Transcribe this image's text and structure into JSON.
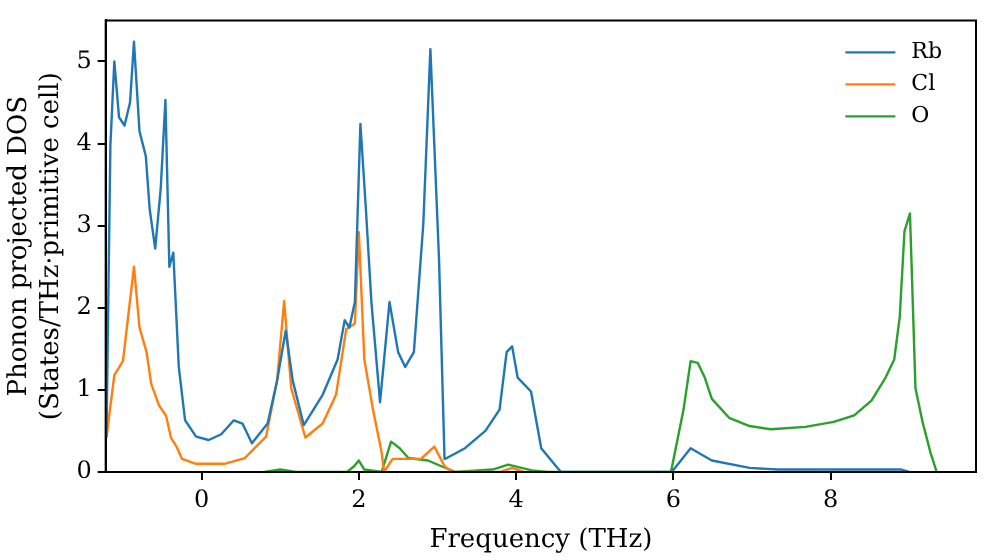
{
  "chart_data": {
    "type": "line",
    "xlabel": "Frequency (THz)",
    "ylabel": "Phonon projected DOS\n(States/THz·primitive cell)",
    "xlim": [
      -1.22,
      9.85
    ],
    "ylim": [
      0,
      5.5
    ],
    "xticks": [
      0,
      2,
      4,
      6,
      8
    ],
    "yticks": [
      0,
      1,
      2,
      3,
      4,
      5
    ],
    "grid": false,
    "legend": "top right",
    "marker": "none",
    "line_style": "solid",
    "series": [
      {
        "name": "Rb",
        "color": "#1f77b4",
        "x": [
          -1.21,
          -1.16,
          -1.11,
          -1.05,
          -0.98,
          -0.91,
          -0.86,
          -0.79,
          -0.71,
          -0.66,
          -0.59,
          -0.52,
          -0.46,
          -0.41,
          -0.36,
          -0.29,
          -0.21,
          -0.07,
          0.09,
          0.25,
          0.41,
          0.52,
          0.64,
          0.84,
          0.96,
          1.07,
          1.16,
          1.3,
          1.54,
          1.73,
          1.82,
          1.88,
          1.95,
          2.02,
          2.09,
          2.16,
          2.27,
          2.39,
          2.5,
          2.59,
          2.7,
          2.82,
          2.91,
          3.02,
          3.09,
          3.12,
          3.35,
          3.61,
          3.79,
          3.88,
          3.95,
          4.02,
          4.19,
          4.32,
          4.57,
          5.98,
          6.22,
          6.49,
          6.97,
          7.33,
          8.9,
          9.0
        ],
        "values": [
          0.42,
          3.98,
          5.0,
          4.32,
          4.22,
          4.5,
          5.24,
          4.15,
          3.85,
          3.2,
          2.72,
          3.45,
          4.53,
          2.5,
          2.67,
          1.28,
          0.63,
          0.43,
          0.39,
          0.46,
          0.63,
          0.59,
          0.35,
          0.59,
          1.11,
          1.72,
          1.11,
          0.57,
          0.94,
          1.37,
          1.85,
          1.76,
          2.07,
          4.24,
          3.2,
          2.07,
          0.85,
          2.07,
          1.46,
          1.28,
          1.46,
          3.02,
          5.15,
          2.59,
          0.16,
          0.17,
          0.29,
          0.5,
          0.76,
          1.46,
          1.53,
          1.15,
          0.98,
          0.29,
          0,
          0,
          0.29,
          0.14,
          0.05,
          0.03,
          0.03,
          0
        ]
      },
      {
        "name": "Cl",
        "color": "#ff7f0e",
        "x": [
          -1.21,
          -1.11,
          -1.0,
          -0.86,
          -0.79,
          -0.7,
          -0.64,
          -0.54,
          -0.45,
          -0.39,
          -0.32,
          -0.25,
          -0.07,
          0.29,
          0.55,
          0.82,
          0.96,
          1.05,
          1.14,
          1.32,
          1.54,
          1.71,
          1.84,
          1.95,
          2.0,
          2.07,
          2.18,
          2.29,
          2.32,
          2.43,
          2.61,
          2.79,
          2.96,
          3.09,
          3.19,
          3.8,
          3.95,
          4.1
        ],
        "values": [
          0.42,
          1.18,
          1.35,
          2.5,
          1.76,
          1.46,
          1.07,
          0.81,
          0.68,
          0.42,
          0.31,
          0.16,
          0.1,
          0.1,
          0.17,
          0.43,
          1.11,
          2.08,
          1.02,
          0.42,
          0.59,
          0.94,
          1.74,
          1.81,
          2.92,
          1.37,
          0.76,
          0.24,
          0,
          0.16,
          0.16,
          0.16,
          0.31,
          0.07,
          0,
          0,
          0.05,
          0
        ]
      },
      {
        "name": "O",
        "color": "#2ca02c",
        "x": [
          0.8,
          1.0,
          1.2,
          1.85,
          1.94,
          2.0,
          2.07,
          2.29,
          2.41,
          2.52,
          2.63,
          2.88,
          3.05,
          3.23,
          3.7,
          3.9,
          4.2,
          4.4,
          5.97,
          6.13,
          6.22,
          6.31,
          6.4,
          6.49,
          6.71,
          6.97,
          7.24,
          7.68,
          8.04,
          8.3,
          8.52,
          8.7,
          8.81,
          8.88,
          8.94,
          9.01,
          9.08,
          9.17,
          9.27,
          9.35
        ],
        "values": [
          0,
          0.03,
          0,
          0,
          0.07,
          0.14,
          0.03,
          0,
          0.37,
          0.29,
          0.17,
          0.14,
          0.07,
          0,
          0.03,
          0.09,
          0.02,
          0,
          0,
          0.76,
          1.35,
          1.33,
          1.15,
          0.89,
          0.66,
          0.56,
          0.52,
          0.55,
          0.61,
          0.69,
          0.87,
          1.15,
          1.37,
          1.89,
          2.93,
          3.15,
          1.02,
          0.61,
          0.24,
          0
        ]
      }
    ]
  }
}
